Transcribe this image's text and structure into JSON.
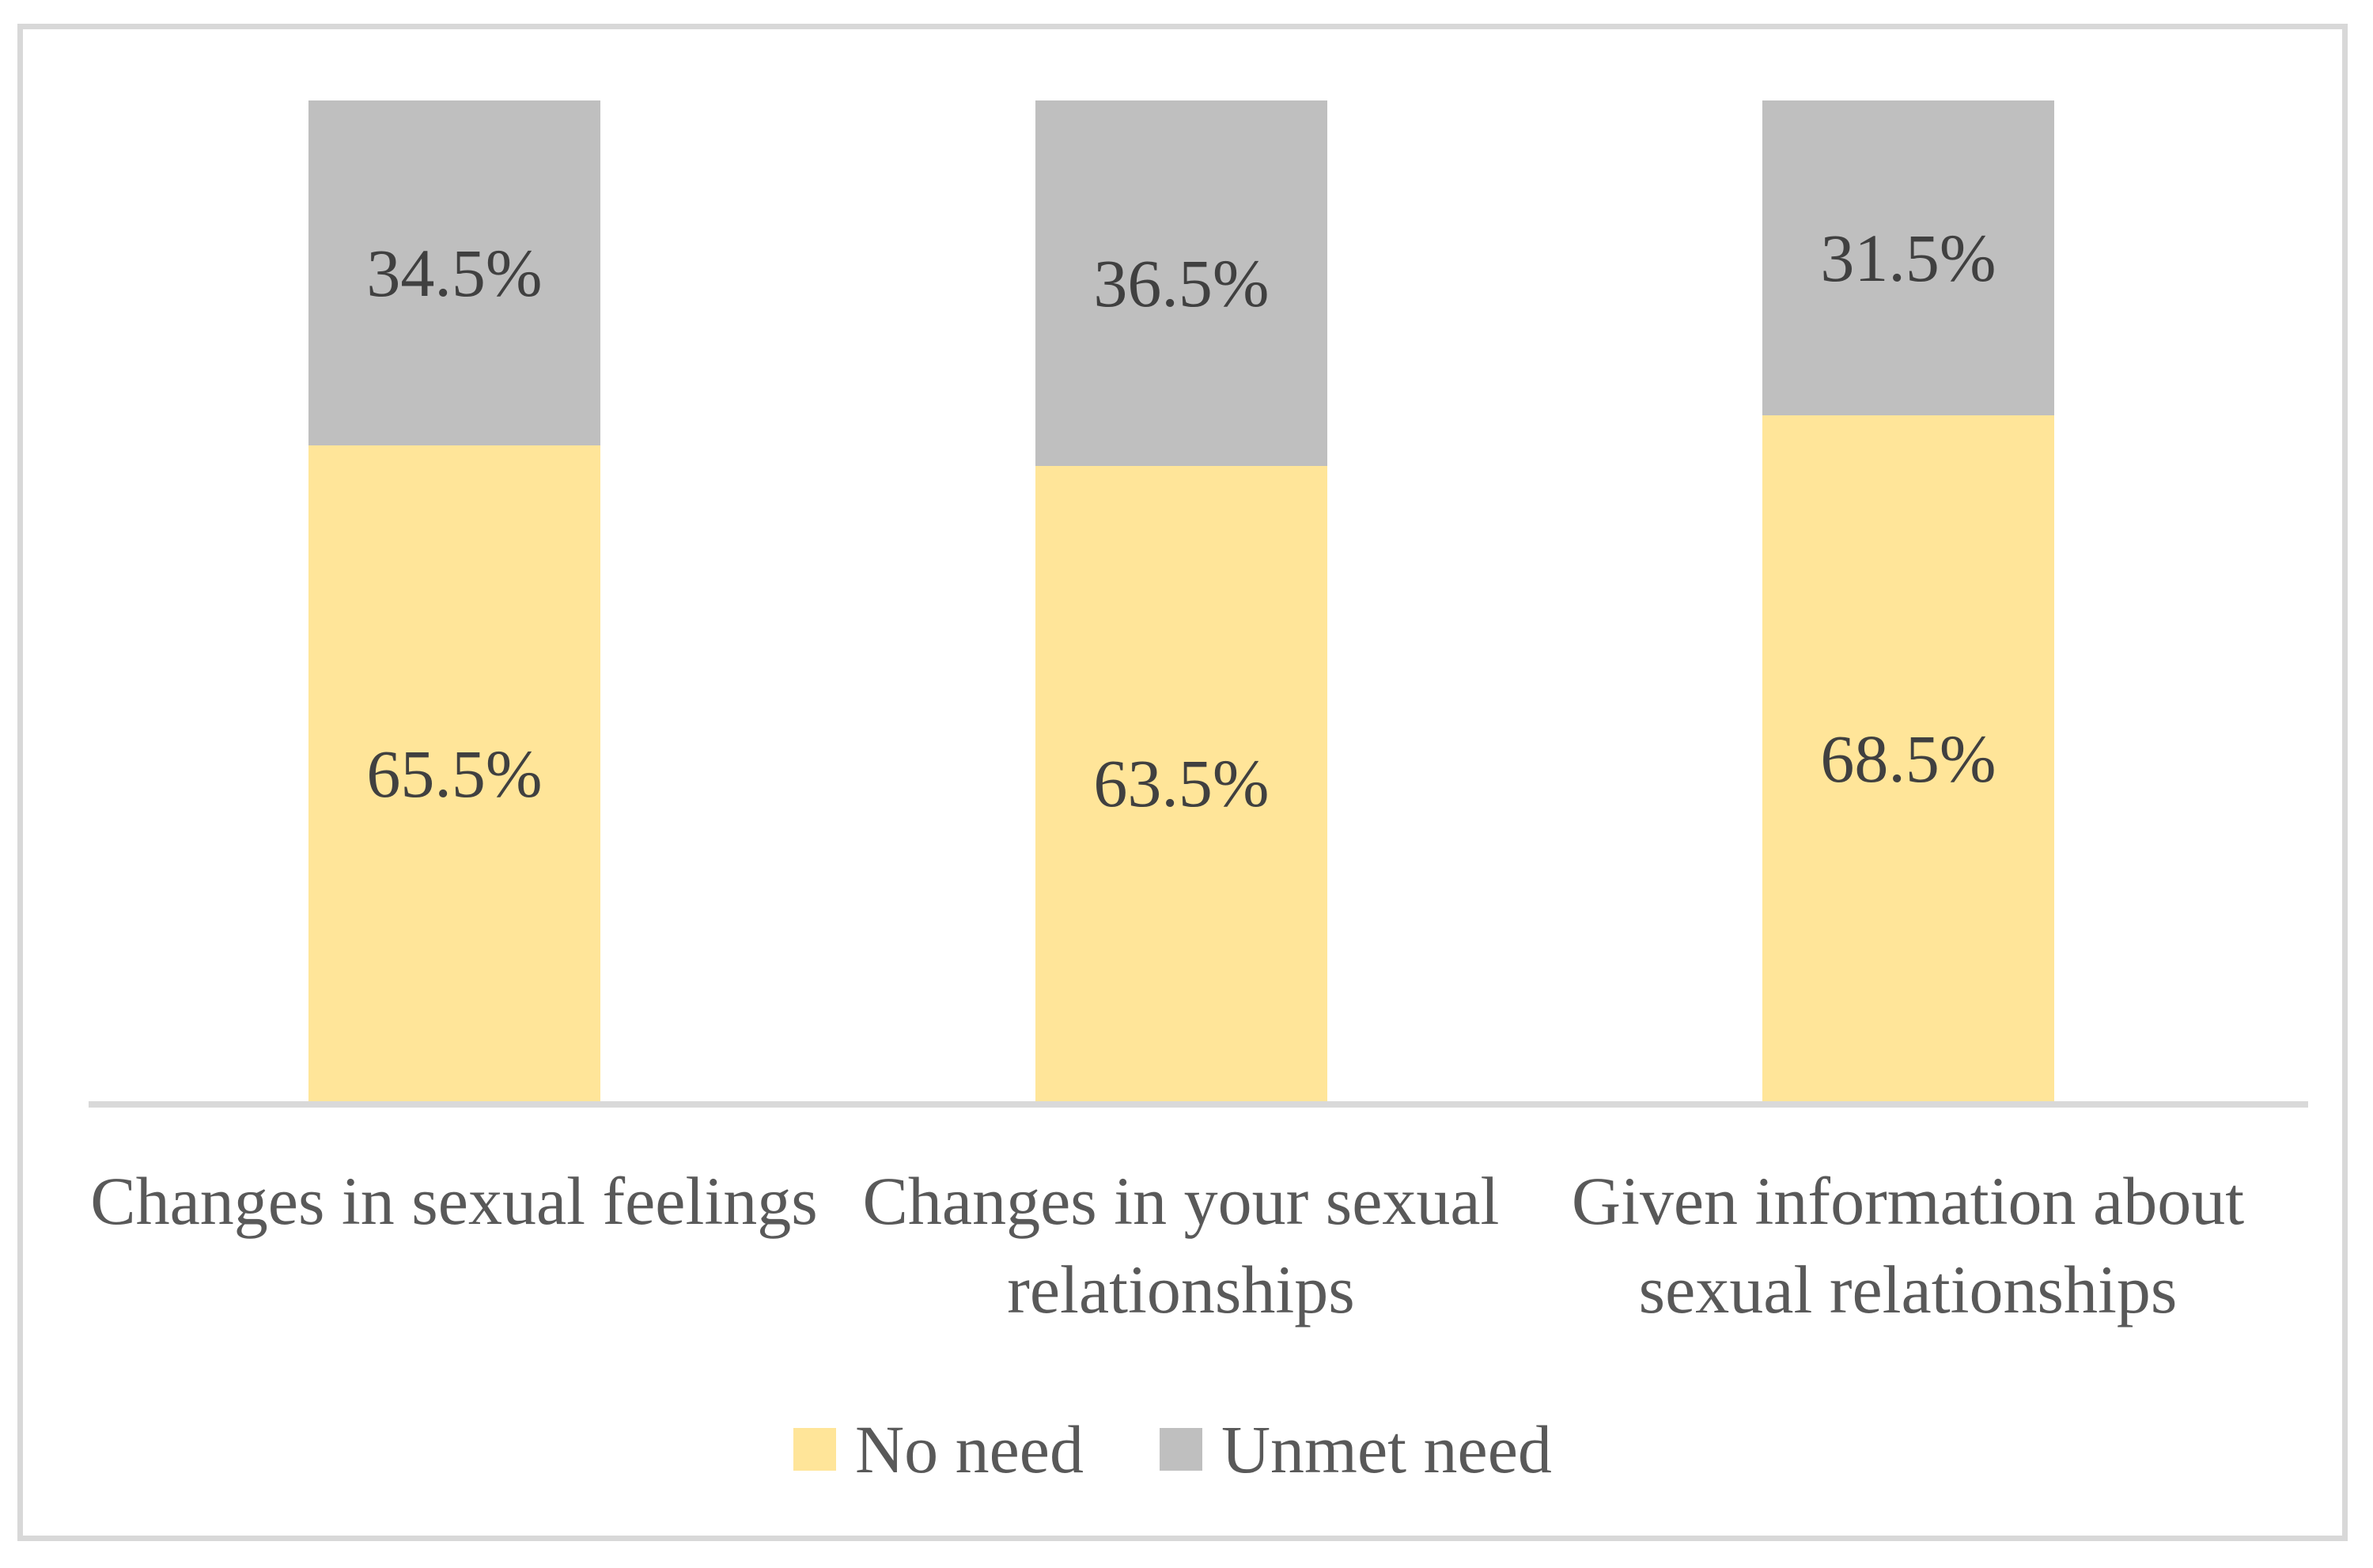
{
  "chart_data": {
    "type": "bar",
    "stacked": true,
    "title": "",
    "categories": [
      "Changes in sexual feelings",
      "Changes in your sexual relationships",
      "Given information about sexual relationships"
    ],
    "series": [
      {
        "name": "No need",
        "color": "#FFE599",
        "values": [
          65.5,
          63.5,
          68.5
        ],
        "labels": [
          "65.5%",
          "63.5%",
          "68.5%"
        ]
      },
      {
        "name": "Unmet need",
        "color": "#BFBFBF",
        "values": [
          34.5,
          36.5,
          31.5
        ],
        "labels": [
          "34.5%",
          "36.5%",
          "31.5%"
        ]
      }
    ],
    "ylim": [
      0,
      100
    ],
    "unit": "%",
    "grid": false,
    "legend_position": "bottom",
    "colors": {
      "axis_line": "#D9D9D9",
      "frame_border": "#D8D8D8",
      "value_label_text": "#404040",
      "axis_text": "#595959",
      "background": "#FFFFFF"
    }
  }
}
